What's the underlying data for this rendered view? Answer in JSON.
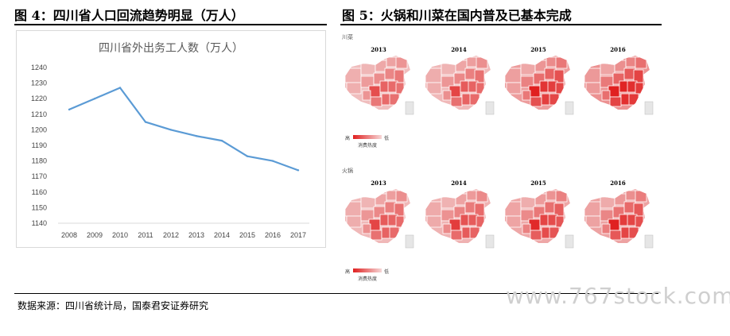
{
  "figure4": {
    "title": "图 4：四川省人口回流趋势明显（万人）"
  },
  "figure5": {
    "title": "图 5：火锅和川菜在国内普及已基本完成",
    "sections": [
      {
        "label": "川菜",
        "years": [
          "2013",
          "2014",
          "2015",
          "2016"
        ],
        "intensity": [
          0.25,
          0.3,
          0.55,
          0.65
        ]
      },
      {
        "label": "火锅",
        "years": [
          "2013",
          "2014",
          "2015",
          "2016"
        ],
        "intensity": [
          0.3,
          0.35,
          0.45,
          0.5
        ]
      }
    ],
    "legend": {
      "high": "高",
      "low": "低",
      "caption": "消费热度"
    },
    "colors": {
      "high": "#e02020",
      "low": "#f3d9d9"
    }
  },
  "source": "数据来源：四川省统计局，国泰君安证券研究",
  "watermark": "www.767stock.com",
  "chart_data": {
    "type": "line",
    "title": "四川省外出务工人数（万人）",
    "xlabel": "",
    "ylabel": "",
    "categories": [
      "2008",
      "2009",
      "2010",
      "2011",
      "2012",
      "2013",
      "2014",
      "2015",
      "2016",
      "2017"
    ],
    "series": [
      {
        "values": [
          1213,
          1220,
          1227,
          1205,
          1200,
          1196,
          1193,
          1183,
          1180,
          1174
        ],
        "color": "#5b9bd5"
      }
    ],
    "ylim": [
      1140,
      1240
    ],
    "yticks": [
      1140,
      1150,
      1160,
      1170,
      1180,
      1190,
      1200,
      1210,
      1220,
      1230,
      1240
    ],
    "grid": false,
    "legend": "none"
  }
}
